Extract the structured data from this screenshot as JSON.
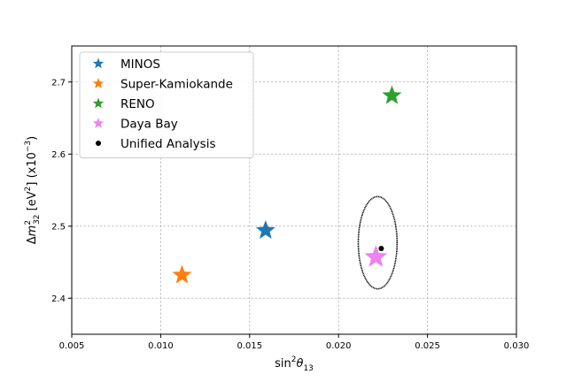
{
  "chart_data": {
    "type": "scatter",
    "xlabel_base": "sin",
    "xlabel_sup": "2",
    "xlabel_theta": "θ",
    "xlabel_sub": "13",
    "ylabel_delta": "Δ",
    "ylabel_m": "m",
    "ylabel_sup": "2",
    "ylabel_sub": "32",
    "ylabel_units_pre": " [eV",
    "ylabel_units_sup": "2",
    "ylabel_units_post": "] (x10",
    "ylabel_exp": "−3",
    "ylabel_close": ")",
    "xlim": [
      0.005,
      0.03
    ],
    "ylim": [
      2.35,
      2.75
    ],
    "xticks": [
      "0.005",
      "0.010",
      "0.015",
      "0.020",
      "0.025",
      "0.030"
    ],
    "yticks": [
      "2.4",
      "2.5",
      "2.6",
      "2.7"
    ],
    "grid": true,
    "legend_position": "top-left",
    "series": [
      {
        "name": "MINOS",
        "marker": "star",
        "color": "#1f77b4",
        "x": 0.0159,
        "y": 2.494
      },
      {
        "name": "Super-Kamiokande",
        "marker": "star",
        "color": "#ff7f0e",
        "x": 0.0112,
        "y": 2.432
      },
      {
        "name": "RENO",
        "marker": "star",
        "color": "#2ca02c",
        "x": 0.023,
        "y": 2.681
      },
      {
        "name": "Daya Bay",
        "marker": "star",
        "color": "#ee82ee",
        "x": 0.0221,
        "y": 2.457
      },
      {
        "name": "Unified Analysis",
        "marker": "dot",
        "color": "#000000",
        "x": 0.0224,
        "y": 2.469
      }
    ],
    "contour": {
      "color": "#000000",
      "center": [
        0.0222,
        2.477
      ],
      "x_half_width": 0.00109,
      "y_half_height": 0.064
    }
  }
}
